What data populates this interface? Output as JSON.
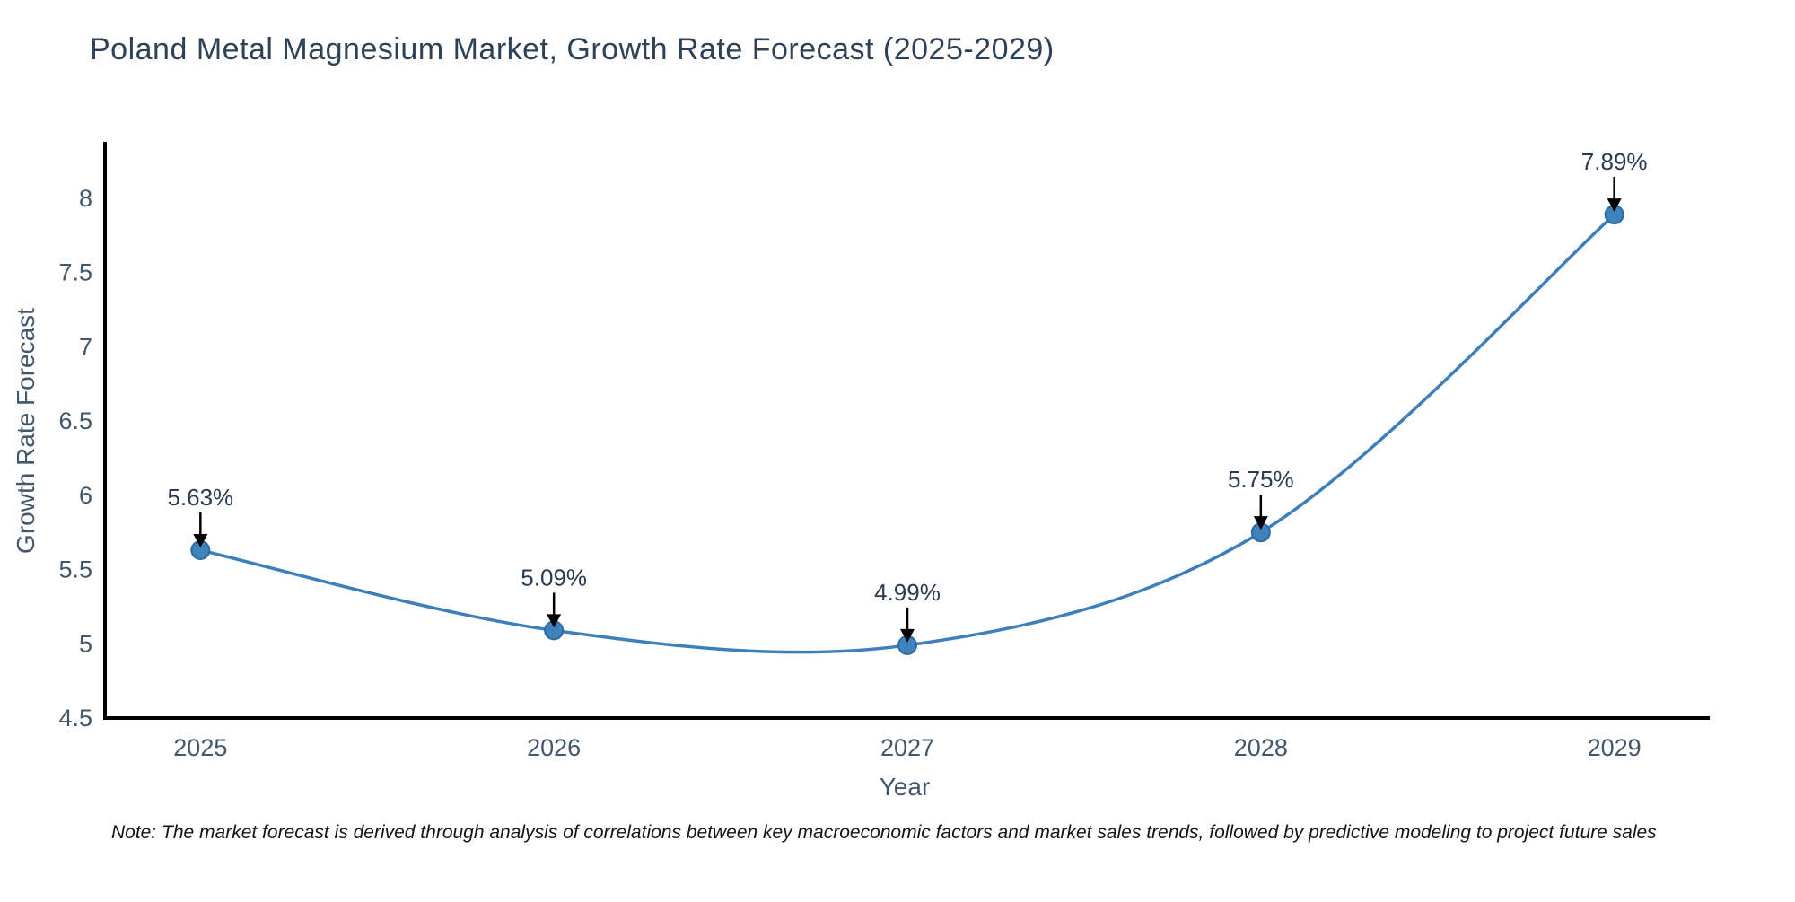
{
  "title": "Poland Metal Magnesium Market, Growth Rate Forecast (2025-2029)",
  "note": "Note: The market forecast is derived through analysis of correlations between key macroeconomic factors and market sales trends, followed by predictive modeling to project future sales",
  "chart_data": {
    "type": "line",
    "title": "Poland Metal Magnesium Market, Growth Rate Forecast (2025-2029)",
    "xlabel": "Year",
    "ylabel": "Growth Rate Forecast",
    "categories": [
      "2025",
      "2026",
      "2027",
      "2028",
      "2029"
    ],
    "x": [
      2025,
      2026,
      2027,
      2028,
      2029
    ],
    "values": [
      5.63,
      5.09,
      4.99,
      5.75,
      7.89
    ],
    "point_labels": [
      "5.63%",
      "5.09%",
      "4.99%",
      "5.75%",
      "7.89%"
    ],
    "yticks": [
      4.5,
      5,
      5.5,
      6,
      6.5,
      7,
      7.5,
      8
    ],
    "ytick_labels": [
      "4.5",
      "5",
      "5.5",
      "6",
      "6.5",
      "7",
      "7.5",
      "8"
    ],
    "xlim": [
      2024.73,
      2029.27
    ],
    "ylim": [
      4.5,
      8.38
    ],
    "grid": false,
    "legend": "none",
    "line_style": "spline",
    "colors": {
      "line": "#3d7fba",
      "marker": "#3f83bd",
      "marker_edge": "#2e6ba2",
      "axis": "#000000",
      "tick_text": "#42576b",
      "title_text": "#2e4157",
      "annotation_text": "#2b3a52",
      "arrow": "#000000"
    }
  }
}
